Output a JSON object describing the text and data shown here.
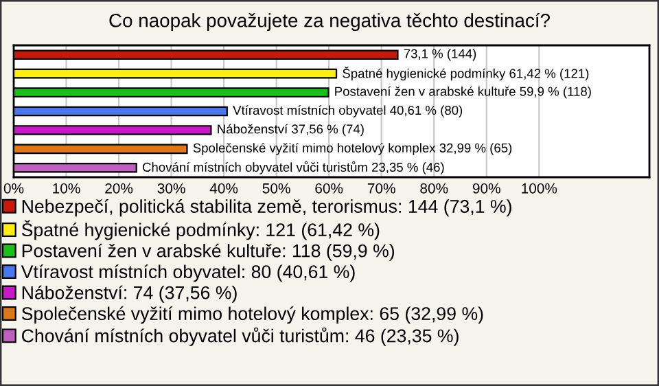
{
  "chart_data": {
    "type": "bar",
    "orientation": "horizontal",
    "title": "Co naopak považujete za negativa těchto destinací?",
    "categories": [
      null,
      null,
      null,
      null,
      null,
      null,
      null
    ],
    "series": [
      {
        "name": "Nebezpečí, politická stabilita země, terorismus: 144 (73,1 %)",
        "color": "#c8180c",
        "values": [
          73.1,
          null,
          null,
          null,
          null,
          null,
          null
        ],
        "value_labels": [
          "73,1 % (144)",
          null,
          null,
          null,
          null,
          null,
          null
        ]
      },
      {
        "name": "Špatné hygienické podmínky: 121 (61,42 %)",
        "color": "#ffee10",
        "values": [
          null,
          61.42,
          null,
          null,
          null,
          null,
          null
        ],
        "value_labels": [
          null,
          "Špatné hygienické podmínky 61,42 % (121)",
          null,
          null,
          null,
          null,
          null
        ]
      },
      {
        "name": "Postavení žen v arabské kultuře: 118 (59,9 %)",
        "color": "#18c018",
        "values": [
          null,
          null,
          59.9,
          null,
          null,
          null,
          null
        ],
        "value_labels": [
          null,
          null,
          "Postavení žen v arabské kultuře 59,9 % (118)",
          null,
          null,
          null,
          null
        ]
      },
      {
        "name": "Vtíravost místních obyvatel: 80 (40,61 %)",
        "color": "#4878f0",
        "values": [
          null,
          null,
          null,
          40.61,
          null,
          null,
          null
        ],
        "value_labels": [
          null,
          null,
          null,
          "Vtíravost místních obyvatel 40,61 % (80)",
          null,
          null,
          null
        ]
      },
      {
        "name": "Náboženství: 74 (37,56 %)",
        "color": "#c818c8",
        "values": [
          null,
          null,
          null,
          null,
          37.56,
          null,
          null
        ],
        "value_labels": [
          null,
          null,
          null,
          null,
          "Náboženství 37,56 % (74)",
          null,
          null
        ]
      },
      {
        "name": "Společenské vyžití mimo hotelový komplex: 65 (32,99 %)",
        "color": "#e07818",
        "values": [
          null,
          null,
          null,
          null,
          null,
          32.99,
          null
        ],
        "value_labels": [
          null,
          null,
          null,
          null,
          null,
          "Společenské vyžití mimo hotelový komplex 32,99 % (65)",
          null
        ]
      },
      {
        "name": "Chování místních obyvatel vůči turistům: 46 (23,35 %)",
        "color": "#c060c0",
        "values": [
          null,
          null,
          null,
          null,
          null,
          null,
          23.35
        ],
        "value_labels": [
          null,
          null,
          null,
          null,
          null,
          null,
          "Chování místních obyvatel vůči turistům 23,35 % (46)"
        ]
      }
    ],
    "xlim": [
      0,
      121
    ],
    "xticks": [
      {
        "value": 0,
        "label": "0%"
      },
      {
        "value": 10,
        "label": "10%"
      },
      {
        "value": 20,
        "label": "20%"
      },
      {
        "value": 30,
        "label": "30%"
      },
      {
        "value": 40,
        "label": "40%"
      },
      {
        "value": 50,
        "label": "50%"
      },
      {
        "value": 60,
        "label": "60%"
      },
      {
        "value": 70,
        "label": "70%"
      },
      {
        "value": 80,
        "label": "80%"
      },
      {
        "value": 90,
        "label": "90%"
      },
      {
        "value": 100,
        "label": "100%"
      }
    ],
    "grid": "x",
    "legend": "bottom",
    "tick_labels": "x"
  }
}
